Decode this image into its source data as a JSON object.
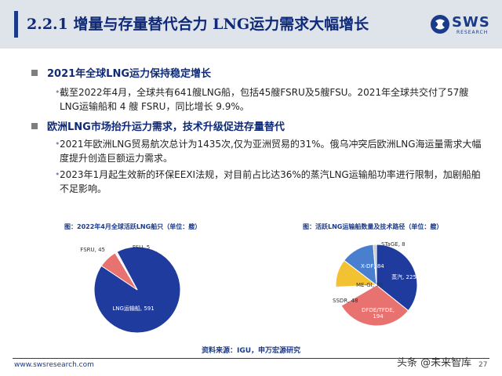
{
  "header": {
    "title": "2.2.1 增量与存量替代合力 LNG运力需求大幅增长",
    "logo_name": "SWS",
    "logo_sub": "RESEARCH"
  },
  "section1": {
    "heading": "2021年全球LNG运力保持稳定增长",
    "items": [
      "截至2022年4月，全球共有641艘LNG船，包括45艘FSRU及5艘FSU。2021年全球共交付了57艘LNG运输船和 4 艘 FSRU，同比增长 9.9%。"
    ]
  },
  "section2": {
    "heading": "欧洲LNG市场抬升运力需求，技术升级促进存量替代",
    "items": [
      "2021年欧洲LNG贸易航次总计为1435次,仅为亚洲贸易的31%。俄乌冲突后欧洲LNG海运量需求大幅度提升创造巨额运力需求。",
      "2023年1月起生效新的环保EEXI法规，对目前占比达36%的蒸汽LNG运输船功率进行限制，加剧船舶不足影响。"
    ]
  },
  "chart_data": [
    {
      "type": "pie",
      "title": "图：2022年4月全球活跃LNG船只（单位：艘）",
      "labels": [
        "LNG运输船, 591",
        "FSRU, 45",
        "FSU, 5"
      ],
      "values": [
        591,
        45,
        5
      ],
      "colors": [
        "#1f3b9e",
        "#e8726f",
        "#f2f2f2"
      ]
    },
    {
      "type": "pie",
      "title": "图：活跃LNG运输船数量及技术路径（单位：艘）",
      "labels": [
        "蒸汽, 225",
        "DFDE/TFDE, 194",
        "SSDR, 48",
        "ME-GI, 70",
        "X-DF, 84",
        "STaGE, 8"
      ],
      "values": [
        225,
        194,
        48,
        70,
        84,
        8
      ],
      "colors": [
        "#1f3b9e",
        "#e8726f",
        "#ffffff",
        "#f2c233",
        "#4a7fd0",
        "#c9c9c9"
      ]
    }
  ],
  "source": "资料来源：IGU，申万宏源研究",
  "footer": {
    "url": "www.swsresearch.com",
    "page": "27",
    "watermark": "头条 @未来智库"
  }
}
